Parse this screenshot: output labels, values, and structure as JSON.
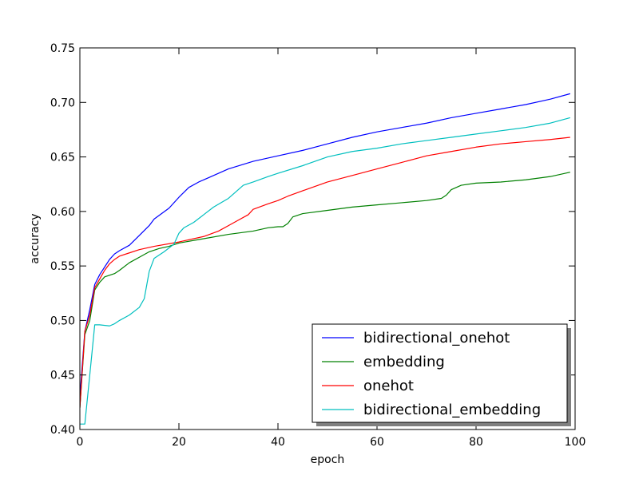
{
  "chart_data": {
    "type": "line",
    "xlabel": "epoch",
    "ylabel": "accuracy",
    "xlim": [
      0,
      100
    ],
    "ylim": [
      0.4,
      0.75
    ],
    "xticks": [
      0,
      20,
      40,
      60,
      80,
      100
    ],
    "yticks": [
      0.4,
      0.45,
      0.5,
      0.55,
      0.6,
      0.65,
      0.7,
      0.75
    ],
    "xtick_labels": [
      "0",
      "20",
      "40",
      "60",
      "80",
      "100"
    ],
    "ytick_labels": [
      "0.40",
      "0.45",
      "0.50",
      "0.55",
      "0.60",
      "0.65",
      "0.70",
      "0.75"
    ],
    "grid": false,
    "legend_position": "bottom-right",
    "series": [
      {
        "name": "bidirectional_onehot",
        "color": "#0000ff",
        "points": [
          [
            0,
            0.43
          ],
          [
            1,
            0.49
          ],
          [
            2,
            0.51
          ],
          [
            3,
            0.533
          ],
          [
            4,
            0.542
          ],
          [
            5,
            0.549
          ],
          [
            6,
            0.556
          ],
          [
            7,
            0.561
          ],
          [
            8,
            0.564
          ],
          [
            10,
            0.569
          ],
          [
            12,
            0.578
          ],
          [
            14,
            0.587
          ],
          [
            15,
            0.593
          ],
          [
            18,
            0.603
          ],
          [
            20,
            0.613
          ],
          [
            22,
            0.622
          ],
          [
            24,
            0.627
          ],
          [
            26,
            0.631
          ],
          [
            28,
            0.635
          ],
          [
            30,
            0.639
          ],
          [
            35,
            0.646
          ],
          [
            40,
            0.651
          ],
          [
            45,
            0.656
          ],
          [
            50,
            0.662
          ],
          [
            55,
            0.668
          ],
          [
            60,
            0.673
          ],
          [
            65,
            0.677
          ],
          [
            70,
            0.681
          ],
          [
            75,
            0.686
          ],
          [
            80,
            0.69
          ],
          [
            85,
            0.694
          ],
          [
            90,
            0.698
          ],
          [
            95,
            0.703
          ],
          [
            99,
            0.708
          ]
        ]
      },
      {
        "name": "embedding",
        "color": "#008000",
        "points": [
          [
            0,
            0.42
          ],
          [
            1,
            0.487
          ],
          [
            2,
            0.5
          ],
          [
            3,
            0.528
          ],
          [
            4,
            0.535
          ],
          [
            5,
            0.54
          ],
          [
            7,
            0.543
          ],
          [
            8,
            0.546
          ],
          [
            10,
            0.553
          ],
          [
            12,
            0.558
          ],
          [
            14,
            0.563
          ],
          [
            16,
            0.566
          ],
          [
            18,
            0.568
          ],
          [
            20,
            0.571
          ],
          [
            25,
            0.575
          ],
          [
            30,
            0.579
          ],
          [
            35,
            0.582
          ],
          [
            38,
            0.585
          ],
          [
            40,
            0.586
          ],
          [
            41,
            0.586
          ],
          [
            42,
            0.589
          ],
          [
            43,
            0.595
          ],
          [
            45,
            0.598
          ],
          [
            50,
            0.601
          ],
          [
            55,
            0.604
          ],
          [
            60,
            0.606
          ],
          [
            65,
            0.608
          ],
          [
            70,
            0.61
          ],
          [
            73,
            0.612
          ],
          [
            74,
            0.615
          ],
          [
            75,
            0.62
          ],
          [
            77,
            0.624
          ],
          [
            80,
            0.626
          ],
          [
            85,
            0.627
          ],
          [
            90,
            0.629
          ],
          [
            95,
            0.632
          ],
          [
            99,
            0.636
          ]
        ]
      },
      {
        "name": "onehot",
        "color": "#ff0000",
        "points": [
          [
            0,
            0.42
          ],
          [
            1,
            0.49
          ],
          [
            2,
            0.505
          ],
          [
            3,
            0.53
          ],
          [
            4,
            0.538
          ],
          [
            5,
            0.546
          ],
          [
            6,
            0.552
          ],
          [
            7,
            0.556
          ],
          [
            8,
            0.559
          ],
          [
            10,
            0.562
          ],
          [
            12,
            0.565
          ],
          [
            15,
            0.568
          ],
          [
            20,
            0.572
          ],
          [
            25,
            0.577
          ],
          [
            28,
            0.582
          ],
          [
            30,
            0.587
          ],
          [
            32,
            0.592
          ],
          [
            34,
            0.597
          ],
          [
            35,
            0.602
          ],
          [
            38,
            0.607
          ],
          [
            40,
            0.61
          ],
          [
            42,
            0.614
          ],
          [
            45,
            0.619
          ],
          [
            50,
            0.627
          ],
          [
            55,
            0.633
          ],
          [
            60,
            0.639
          ],
          [
            65,
            0.645
          ],
          [
            70,
            0.651
          ],
          [
            75,
            0.655
          ],
          [
            80,
            0.659
          ],
          [
            85,
            0.662
          ],
          [
            90,
            0.664
          ],
          [
            95,
            0.666
          ],
          [
            99,
            0.668
          ]
        ]
      },
      {
        "name": "bidirectional_embedding",
        "color": "#00bfbf",
        "points": [
          [
            0,
            0.405
          ],
          [
            1,
            0.405
          ],
          [
            2,
            0.45
          ],
          [
            3,
            0.496
          ],
          [
            4,
            0.496
          ],
          [
            6,
            0.495
          ],
          [
            7,
            0.497
          ],
          [
            8,
            0.5
          ],
          [
            10,
            0.505
          ],
          [
            12,
            0.512
          ],
          [
            13,
            0.52
          ],
          [
            14,
            0.545
          ],
          [
            15,
            0.557
          ],
          [
            17,
            0.563
          ],
          [
            19,
            0.57
          ],
          [
            20,
            0.58
          ],
          [
            21,
            0.585
          ],
          [
            23,
            0.59
          ],
          [
            25,
            0.597
          ],
          [
            27,
            0.604
          ],
          [
            30,
            0.612
          ],
          [
            33,
            0.624
          ],
          [
            35,
            0.627
          ],
          [
            38,
            0.632
          ],
          [
            40,
            0.635
          ],
          [
            45,
            0.642
          ],
          [
            50,
            0.65
          ],
          [
            55,
            0.655
          ],
          [
            60,
            0.658
          ],
          [
            65,
            0.662
          ],
          [
            70,
            0.665
          ],
          [
            75,
            0.668
          ],
          [
            80,
            0.671
          ],
          [
            85,
            0.674
          ],
          [
            90,
            0.677
          ],
          [
            95,
            0.681
          ],
          [
            99,
            0.686
          ]
        ]
      }
    ]
  }
}
